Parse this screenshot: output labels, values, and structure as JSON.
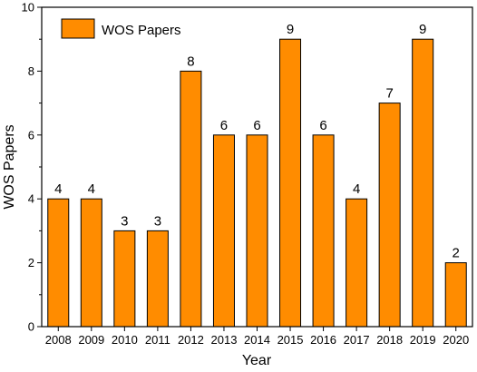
{
  "chart_data": {
    "type": "bar",
    "categories": [
      "2008",
      "2009",
      "2010",
      "2011",
      "2012",
      "2013",
      "2014",
      "2015",
      "2016",
      "2017",
      "2018",
      "2019",
      "2020"
    ],
    "series": [
      {
        "name": "WOS Papers",
        "color": "#ff8c00",
        "values": [
          4,
          4,
          3,
          3,
          8,
          6,
          6,
          9,
          6,
          4,
          7,
          9,
          2
        ]
      }
    ],
    "xlabel": "Year",
    "ylabel": "WOS Papers",
    "ylim": [
      0,
      10
    ],
    "yticks": [
      0,
      2,
      4,
      6,
      8,
      10
    ],
    "grid": false,
    "legend": "top-left",
    "data_labels": true
  }
}
